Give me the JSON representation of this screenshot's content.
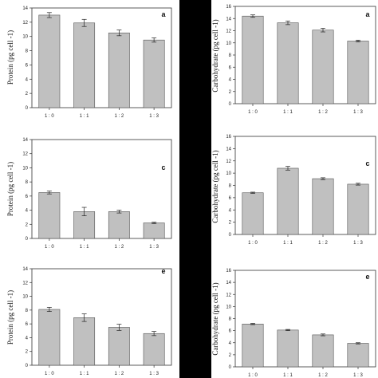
{
  "chart_data": [
    {
      "type": "bar",
      "panel_label": "a",
      "ylabel": "Protein (pg  cell -1)",
      "categories": [
        "1 : 0",
        "1 : 1",
        "1 : 2",
        "1 : 3"
      ],
      "values": [
        13.0,
        11.9,
        10.5,
        9.5
      ],
      "errors": [
        0.35,
        0.5,
        0.4,
        0.3
      ],
      "ylim": [
        0,
        14
      ],
      "yticks": [
        0,
        2,
        4,
        6,
        8,
        10,
        12,
        14
      ],
      "bar_color": "#c0c0c0",
      "grid": false
    },
    {
      "type": "bar",
      "panel_label": "a",
      "ylabel": "Carbohydrate (pg  cell -1)",
      "categories": [
        "1 : 0",
        "1 : 1",
        "1 : 2",
        "1 : 3"
      ],
      "values": [
        14.4,
        13.3,
        12.1,
        10.3
      ],
      "errors": [
        0.2,
        0.3,
        0.3,
        0.15
      ],
      "ylim": [
        0,
        16
      ],
      "yticks": [
        0,
        2,
        4,
        6,
        8,
        10,
        12,
        14,
        16
      ],
      "bar_color": "#c0c0c0",
      "grid": false
    },
    {
      "type": "bar",
      "panel_label": "c",
      "ylabel": "Protein (pg  cell -1)",
      "categories": [
        "1 : 0",
        "1 : 1",
        "1 : 2",
        "1 : 3"
      ],
      "values": [
        6.5,
        3.8,
        3.8,
        2.2
      ],
      "errors": [
        0.2,
        0.6,
        0.2,
        0.1
      ],
      "ylim": [
        0,
        14
      ],
      "yticks": [
        0,
        2,
        4,
        6,
        8,
        10,
        12,
        14
      ],
      "bar_color": "#c0c0c0",
      "grid": false
    },
    {
      "type": "bar",
      "panel_label": "c",
      "ylabel": "Carbohydrate (pg  cell -1)",
      "categories": [
        "1 : 0",
        "1 : 1",
        "1 : 2",
        "1 : 3"
      ],
      "values": [
        6.8,
        10.8,
        9.1,
        8.2
      ],
      "errors": [
        0.1,
        0.3,
        0.15,
        0.15
      ],
      "ylim": [
        0,
        16
      ],
      "yticks": [
        0,
        2,
        4,
        6,
        8,
        10,
        12,
        14,
        16
      ],
      "bar_color": "#c0c0c0",
      "grid": false
    },
    {
      "type": "bar",
      "panel_label": "e",
      "ylabel": "Protein (pg  cell -1)",
      "categories": [
        "1 : 0",
        "1 : 1",
        "1 : 2",
        "1 : 3"
      ],
      "values": [
        8.1,
        6.9,
        5.5,
        4.6
      ],
      "errors": [
        0.3,
        0.55,
        0.45,
        0.3
      ],
      "ylim": [
        0,
        14
      ],
      "yticks": [
        0,
        2,
        4,
        6,
        8,
        10,
        12,
        14
      ],
      "bar_color": "#c0c0c0",
      "grid": false
    },
    {
      "type": "bar",
      "panel_label": "e",
      "ylabel": "Carbohydrate (pg  cell -1)",
      "categories": [
        "1 : 0",
        "1 : 1",
        "1 : 2",
        "1 : 3"
      ],
      "values": [
        7.1,
        6.1,
        5.3,
        3.9
      ],
      "errors": [
        0.1,
        0.1,
        0.15,
        0.1
      ],
      "ylim": [
        0,
        16
      ],
      "yticks": [
        0,
        2,
        4,
        6,
        8,
        10,
        12,
        14,
        16
      ],
      "bar_color": "#c0c0c0",
      "grid": false
    }
  ]
}
